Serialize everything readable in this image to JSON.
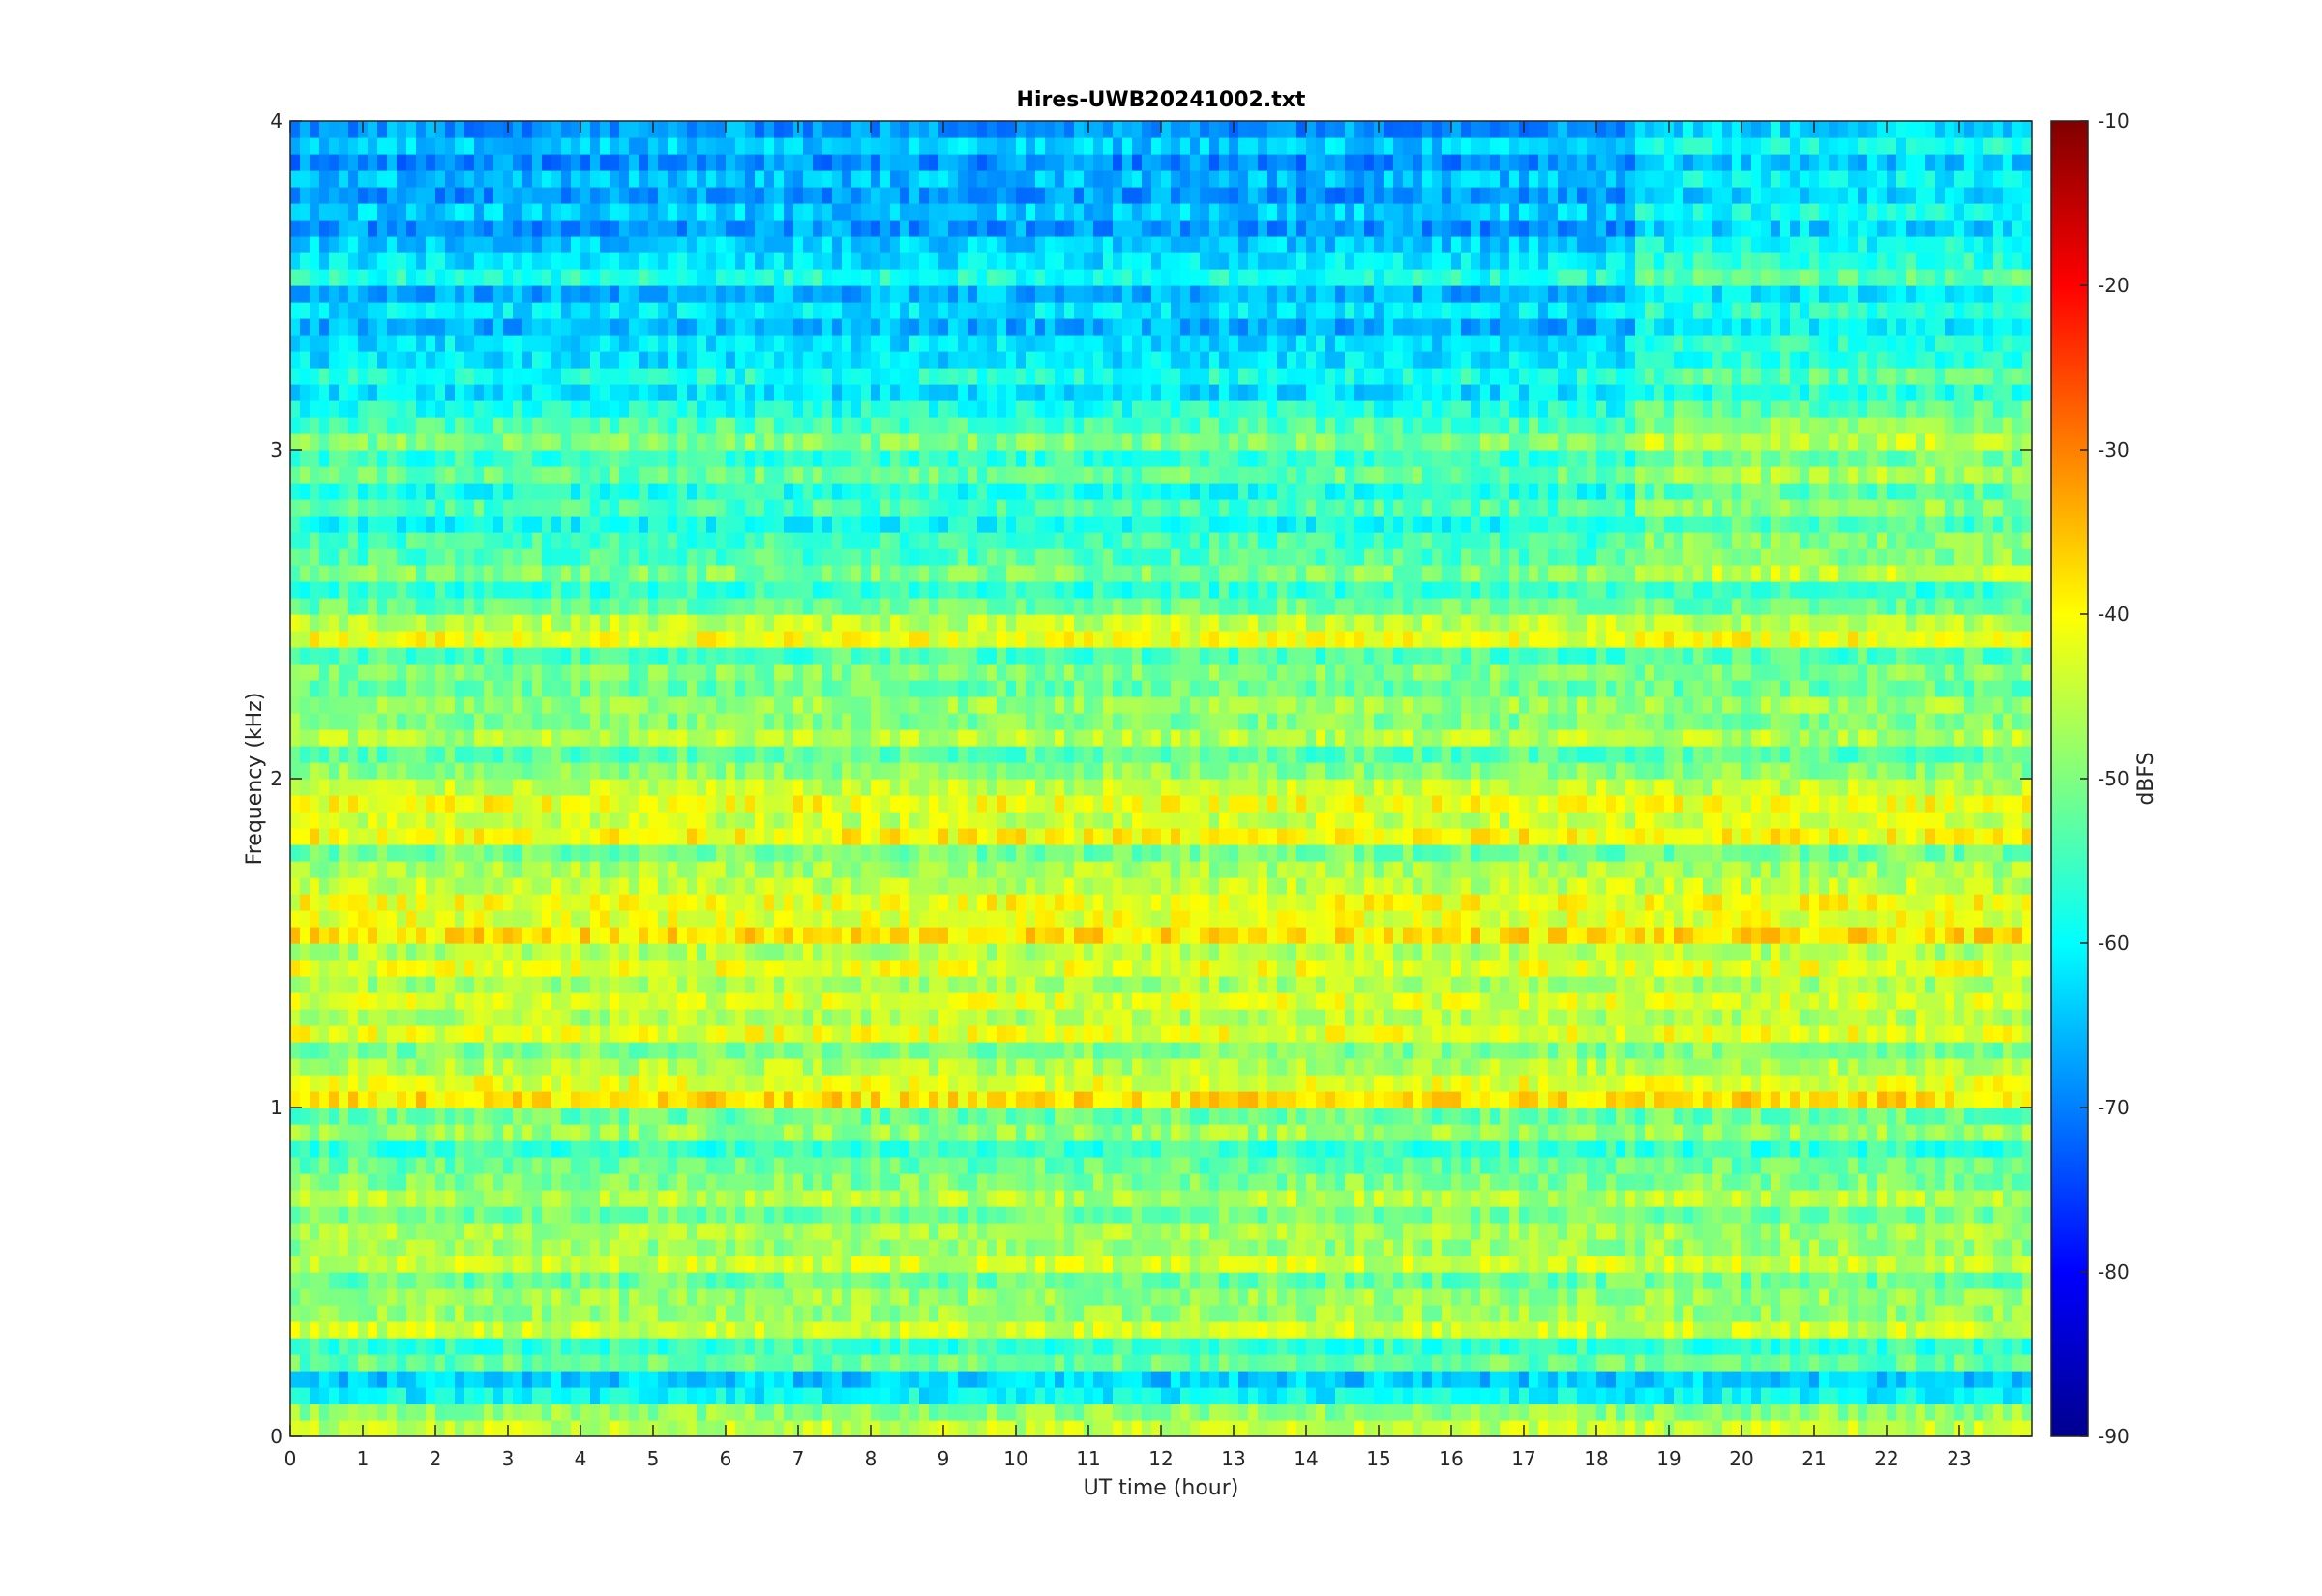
{
  "chart_data": {
    "type": "heatmap",
    "title": "Hires-UWB20241002.txt",
    "xlabel": "UT time (hour)",
    "ylabel": "Frequency (kHz)",
    "xlim": [
      0,
      24
    ],
    "ylim": [
      0,
      4
    ],
    "x_ticks": [
      "0",
      "1",
      "2",
      "3",
      "4",
      "5",
      "6",
      "7",
      "8",
      "9",
      "10",
      "11",
      "12",
      "13",
      "14",
      "15",
      "16",
      "17",
      "18",
      "19",
      "20",
      "21",
      "22",
      "23"
    ],
    "y_ticks": [
      "0",
      "1",
      "2",
      "3",
      "4"
    ],
    "colorbar": {
      "label": "dBFS",
      "range": [
        -90,
        -10
      ],
      "ticks": [
        "-10",
        "-20",
        "-30",
        "-40",
        "-50",
        "-60",
        "-70",
        "-80",
        "-90"
      ],
      "colormap": "jet"
    },
    "grid": false,
    "band_levels": {
      "frequencies_khz": [
        0.05,
        0.15,
        0.25,
        0.35,
        0.45,
        0.55,
        0.65,
        0.75,
        0.85,
        0.95,
        1.05,
        1.15,
        1.25,
        1.35,
        1.45,
        1.55,
        1.65,
        1.75,
        1.85,
        1.95,
        2.05,
        2.15,
        2.25,
        2.35,
        2.45,
        2.55,
        2.65,
        2.75,
        2.85,
        2.95,
        3.05,
        3.15,
        3.25,
        3.35,
        3.45,
        3.55,
        3.65,
        3.75,
        3.85,
        3.95
      ],
      "typical_dbfs": [
        -45,
        -60,
        -52,
        -44,
        -48,
        -44,
        -47,
        -46,
        -52,
        -48,
        -38,
        -46,
        -42,
        -43,
        -42,
        -38,
        -41,
        -47,
        -40,
        -41,
        -49,
        -46,
        -48,
        -50,
        -41,
        -52,
        -50,
        -55,
        -54,
        -52,
        -50,
        -58,
        -58,
        -62,
        -62,
        -58,
        -64,
        -64,
        -65,
        -64
      ]
    },
    "annotation": "level change near 18.5 h above 2.6 kHz"
  }
}
